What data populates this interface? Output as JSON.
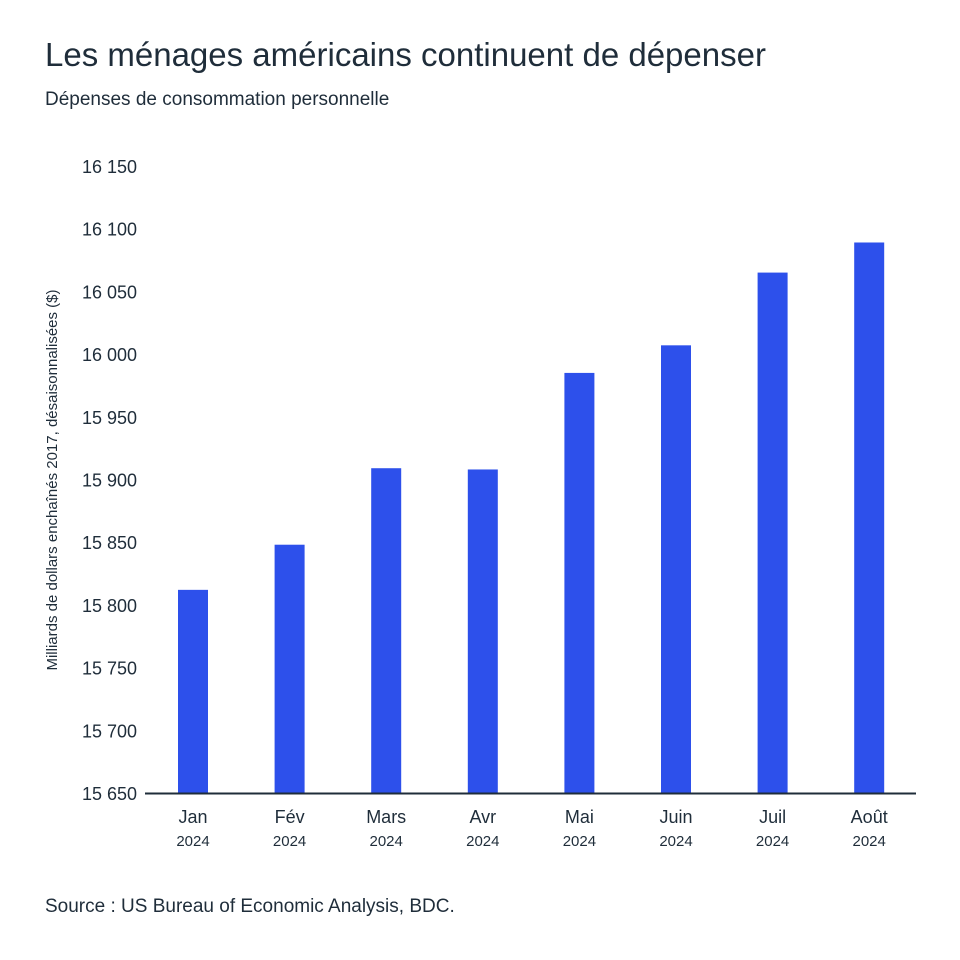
{
  "chart_data": {
    "type": "bar",
    "title": "Les ménages américains continuent de dépenser",
    "subtitle": "Dépenses de consommation personnelle",
    "xlabel": "",
    "ylabel": "Milliards de dollars enchaînés 2017, désaisonnalisées ($)",
    "categories": [
      "Jan",
      "Fév",
      "Mars",
      "Avr",
      "Mai",
      "Juin",
      "Juil",
      "Août"
    ],
    "category_years": [
      "2024",
      "2024",
      "2024",
      "2024",
      "2024",
      "2024",
      "2024",
      "2024"
    ],
    "values": [
      15812,
      15848,
      15909,
      15908,
      15985,
      16007,
      16065,
      16089
    ],
    "ylim": [
      15650,
      16150
    ],
    "yticks": [
      15650,
      15700,
      15750,
      15800,
      15850,
      15900,
      15950,
      16000,
      16050,
      16100,
      16150
    ],
    "ytick_labels": [
      "15 650",
      "15 700",
      "15 750",
      "15 800",
      "15 850",
      "15 900",
      "15 950",
      "16 000",
      "16 050",
      "16 100",
      "16 150"
    ],
    "grid": false,
    "bar_color": "#2d50eb",
    "source": "Source : US Bureau of Economic Analysis, BDC."
  }
}
